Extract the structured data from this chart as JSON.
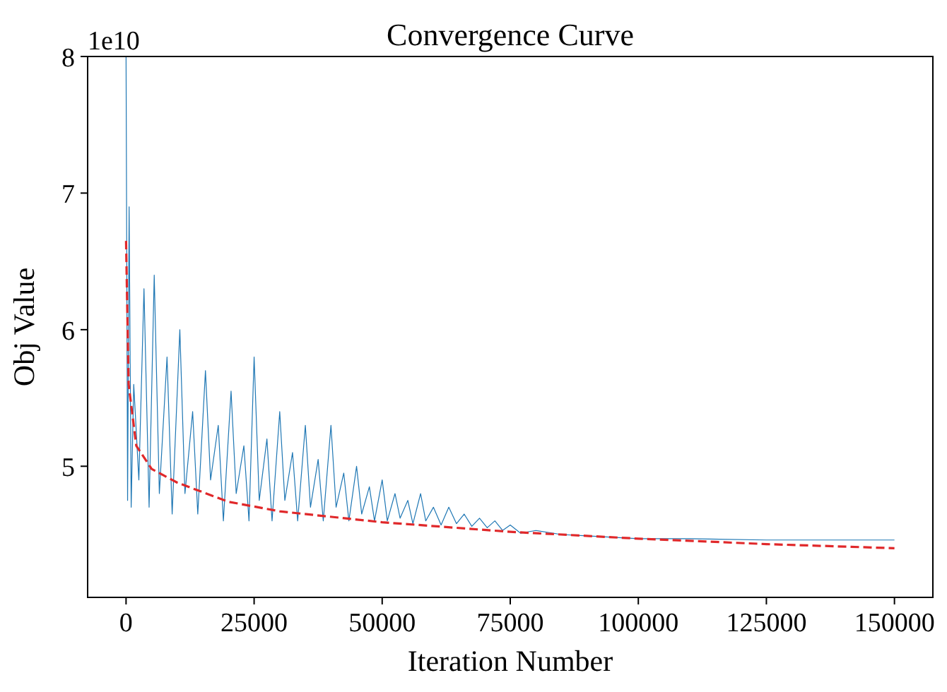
{
  "chart_data": {
    "type": "line",
    "title": "Convergence Curve",
    "xlabel": "Iteration Number",
    "ylabel": "Obj Value",
    "annotations": [
      "1e10"
    ],
    "xlim": [
      -7500,
      157500
    ],
    "ylim": [
      4.04,
      8
    ],
    "xticks": [
      0,
      25000,
      50000,
      75000,
      100000,
      125000,
      150000
    ],
    "yticks": [
      5,
      6,
      7,
      8
    ],
    "series": [
      {
        "color": "#1f77b4",
        "line_style": "solid",
        "x": [
          0,
          300,
          600,
          1000,
          1500,
          2500,
          3500,
          4500,
          5500,
          6500,
          8000,
          9000,
          10500,
          11500,
          13000,
          14000,
          15500,
          16500,
          18000,
          19000,
          20500,
          21500,
          23000,
          24000,
          25000,
          26000,
          27500,
          28500,
          30000,
          31000,
          32500,
          33500,
          35000,
          36000,
          37500,
          38500,
          40000,
          41000,
          42500,
          43500,
          45000,
          46000,
          47500,
          48500,
          50000,
          51000,
          52500,
          53500,
          55000,
          56000,
          57500,
          58500,
          60000,
          61500,
          63000,
          64500,
          66000,
          67500,
          69000,
          70500,
          72000,
          73500,
          75000,
          77000,
          80000,
          85000,
          90000,
          95000,
          100000,
          110000,
          125000,
          150000
        ],
        "values": [
          8.0,
          4.75,
          6.9,
          4.7,
          5.6,
          4.9,
          6.3,
          4.7,
          6.4,
          4.8,
          5.8,
          4.65,
          6.0,
          4.8,
          5.4,
          4.65,
          5.7,
          4.9,
          5.3,
          4.6,
          5.55,
          4.8,
          5.15,
          4.6,
          5.8,
          4.75,
          5.2,
          4.6,
          5.4,
          4.75,
          5.1,
          4.6,
          5.3,
          4.7,
          5.05,
          4.6,
          5.3,
          4.7,
          4.95,
          4.6,
          5.0,
          4.65,
          4.85,
          4.6,
          4.9,
          4.6,
          4.8,
          4.62,
          4.75,
          4.58,
          4.8,
          4.6,
          4.7,
          4.57,
          4.7,
          4.58,
          4.65,
          4.56,
          4.62,
          4.55,
          4.6,
          4.53,
          4.57,
          4.51,
          4.53,
          4.5,
          4.49,
          4.48,
          4.47,
          4.47,
          4.46,
          4.46
        ]
      },
      {
        "color": "#e0282a",
        "line_style": "dashed",
        "x": [
          0,
          500,
          2000,
          5000,
          10000,
          20000,
          30000,
          50000,
          75000,
          100000,
          125000,
          150000
        ],
        "values": [
          6.65,
          5.6,
          5.15,
          4.98,
          4.88,
          4.74,
          4.67,
          4.59,
          4.52,
          4.47,
          4.43,
          4.4
        ]
      }
    ]
  }
}
